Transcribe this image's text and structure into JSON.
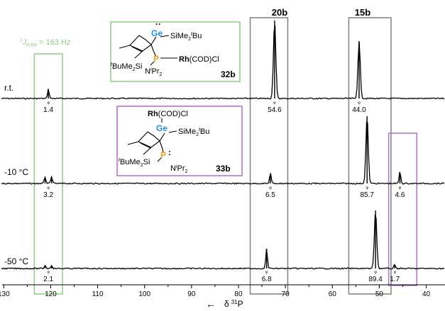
{
  "chart_data": {
    "type": "line",
    "title": "",
    "xlabel": "δ 31P",
    "ylabel": "",
    "x_reversed": true,
    "xlim": [
      130.5,
      36
    ],
    "x_ticks": [
      130,
      120,
      110,
      100,
      90,
      80,
      70,
      60,
      50,
      40
    ],
    "series": [
      {
        "name": "r.t.",
        "peaks": [
          {
            "shift": 120.5,
            "height": 0.12
          },
          {
            "shift": 72.3,
            "height": 1.0
          },
          {
            "shift": 54.3,
            "height": 0.73
          }
        ],
        "integrals": [
          {
            "shift": 120.5,
            "label": "1.4"
          },
          {
            "shift": 72.3,
            "label": "54.6"
          },
          {
            "shift": 54.3,
            "label": "44.0"
          }
        ]
      },
      {
        "name": "-10 °C",
        "peaks": [
          {
            "shift": 121.2,
            "height": 0.09
          },
          {
            "shift": 119.8,
            "height": 0.09
          },
          {
            "shift": 73.2,
            "height": 0.14
          },
          {
            "shift": 52.6,
            "height": 0.93
          },
          {
            "shift": 45.6,
            "height": 0.16
          }
        ],
        "integrals": [
          {
            "shift": 120.5,
            "label": "3.2"
          },
          {
            "shift": 73.2,
            "label": "6.5"
          },
          {
            "shift": 52.6,
            "label": "85.7"
          },
          {
            "shift": 45.6,
            "label": "4.6"
          }
        ]
      },
      {
        "name": "-50 °C",
        "peaks": [
          {
            "shift": 121.2,
            "height": 0.05
          },
          {
            "shift": 119.8,
            "height": 0.05
          },
          {
            "shift": 74.0,
            "height": 0.3
          },
          {
            "shift": 50.8,
            "height": 0.89
          },
          {
            "shift": 46.7,
            "height": 0.06
          }
        ],
        "integrals": [
          {
            "shift": 120.5,
            "label": "2.1"
          },
          {
            "shift": 74.0,
            "label": "6.8"
          },
          {
            "shift": 50.8,
            "label": "89.4"
          },
          {
            "shift": 46.7,
            "label": "1.7"
          }
        ]
      }
    ],
    "regions": [
      {
        "label": "",
        "from": 123.5,
        "to": 117.5,
        "color": "#8ccf7e",
        "caption": "¹J​P,Rh = 163 Hz"
      },
      {
        "label": "20b",
        "from": 77.5,
        "to": 69.5,
        "color": "#7f7f7f"
      },
      {
        "label": "15b",
        "from": 56.5,
        "to": 47.5,
        "color": "#7f7f7f"
      },
      {
        "label": "",
        "from": 48.0,
        "to": 42.0,
        "color": "#b16fc5"
      }
    ],
    "annotations": [
      {
        "text": "←"
      }
    ]
  },
  "caption_parts": {
    "j": "J",
    "sup": "1",
    "sub": "P,Rh",
    "rest": " = 163 Hz"
  },
  "xlabel_parts": {
    "delta": "δ",
    "sup": "31",
    "nucleus": "P"
  },
  "structures": {
    "s32": {
      "id": "32b",
      "rh": "Rh",
      "rh_rest": "(COD)Cl",
      "ge": "Ge",
      "p": "P",
      "si_top": "SiMe",
      "si_top_sub": "2",
      "si_top_sup": "t",
      "si_top_end": "Bu",
      "si_bot_sup": "t",
      "si_bot": "BuMe",
      "si_bot_sub": "2",
      "si_bot_end": "Si",
      "n": "N",
      "n_sup": "i",
      "n_pr": "Pr",
      "n_sub": "2"
    },
    "s33": {
      "id": "33b",
      "rh": "Rh",
      "rh_rest": "(COD)Cl",
      "ge": "Ge",
      "p": "P",
      "si_top": "SiMe",
      "si_top_sub": "2",
      "si_top_sup": "t",
      "si_top_end": "Bu",
      "si_bot_sup": "t",
      "si_bot": "BuMe",
      "si_bot_sub": "2",
      "si_bot_end": "Si",
      "n": "N",
      "n_sup": "i",
      "n_pr": "Pr",
      "n_sub": "2"
    }
  },
  "colors": {
    "ge": "#1f8fe6",
    "p": "#f0a020",
    "green": "#8ccf7e",
    "grey": "#7f7f7f",
    "purple": "#b16fc5",
    "trace": "#000000"
  }
}
